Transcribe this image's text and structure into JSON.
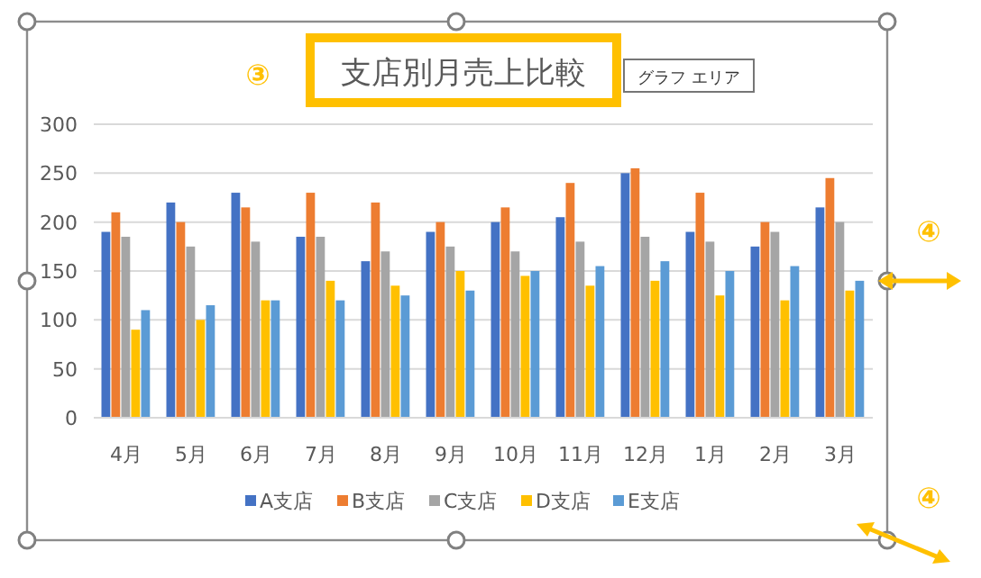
{
  "chart_data": {
    "type": "bar",
    "title": "支店別月売上比較",
    "categories": [
      "4月",
      "5月",
      "6月",
      "7月",
      "8月",
      "9月",
      "10月",
      "11月",
      "12月",
      "1月",
      "2月",
      "3月"
    ],
    "series": [
      {
        "name": "A支店",
        "color": "#4472c4",
        "values": [
          190,
          220,
          230,
          185,
          160,
          190,
          200,
          205,
          250,
          190,
          175,
          215
        ]
      },
      {
        "name": "B支店",
        "color": "#ed7d31",
        "values": [
          210,
          200,
          215,
          230,
          220,
          200,
          215,
          240,
          255,
          230,
          200,
          245
        ]
      },
      {
        "name": "C支店",
        "color": "#a5a5a5",
        "values": [
          185,
          175,
          180,
          185,
          170,
          175,
          170,
          180,
          185,
          180,
          190,
          200
        ]
      },
      {
        "name": "D支店",
        "color": "#ffc000",
        "values": [
          90,
          100,
          120,
          140,
          135,
          150,
          145,
          135,
          140,
          125,
          120,
          130
        ]
      },
      {
        "name": "E支店",
        "color": "#5b9bd5",
        "values": [
          110,
          115,
          120,
          120,
          125,
          130,
          150,
          155,
          160,
          150,
          155,
          140
        ]
      }
    ],
    "ylim": [
      0,
      300
    ],
    "yticks": [
      0,
      50,
      100,
      150,
      200,
      250,
      300
    ],
    "grid": "y",
    "legend": "bottom",
    "annotations": [
      "③",
      "グラフ エリア",
      "④",
      "④"
    ]
  }
}
